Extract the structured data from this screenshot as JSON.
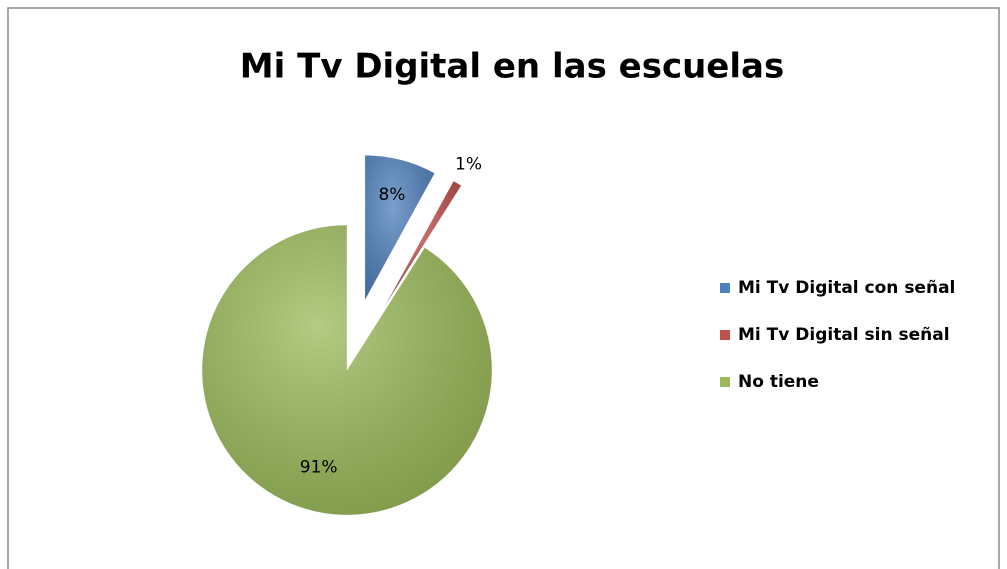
{
  "chart_data": {
    "type": "pie",
    "title": "Mi Tv Digital en las escuelas",
    "categories": [
      "Mi Tv Digital con señal",
      "Mi Tv Digital sin señal",
      "No tiene"
    ],
    "values": [
      8,
      1,
      91
    ],
    "value_labels": [
      "8%",
      "1%",
      "91%"
    ],
    "colors": [
      "#4f81bd",
      "#c0504d",
      "#9bbb59"
    ],
    "legend": "right"
  }
}
